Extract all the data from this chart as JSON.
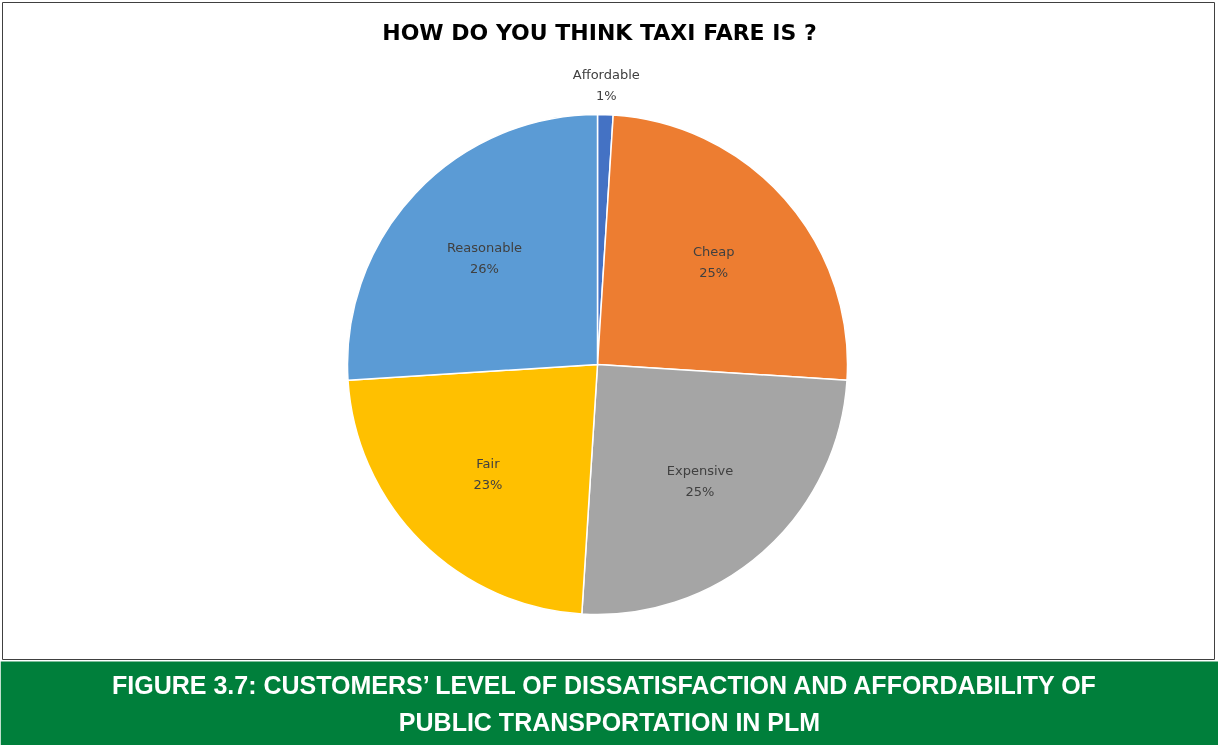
{
  "chart_data": {
    "type": "pie",
    "title": "HOW DO YOU THINK TAXI FARE IS ?",
    "categories": [
      "Affordable",
      "Cheap",
      "Expensive",
      "Fair",
      "Reasonable"
    ],
    "values": [
      1,
      25,
      25,
      23,
      26
    ],
    "value_labels": [
      "1%",
      "25%",
      "25%",
      "23%",
      "26%"
    ],
    "colors": [
      "#4472c4",
      "#ed7d31",
      "#a5a5a5",
      "#ffc000",
      "#5b9bd5"
    ],
    "annotations": [
      "FIGURE 3.7:  CUSTOMERS’ LEVEL OF DISSATISFACTION AND AFFORDABILITY OF PUBLIC TRANSPORTATION IN PLM"
    ]
  }
}
